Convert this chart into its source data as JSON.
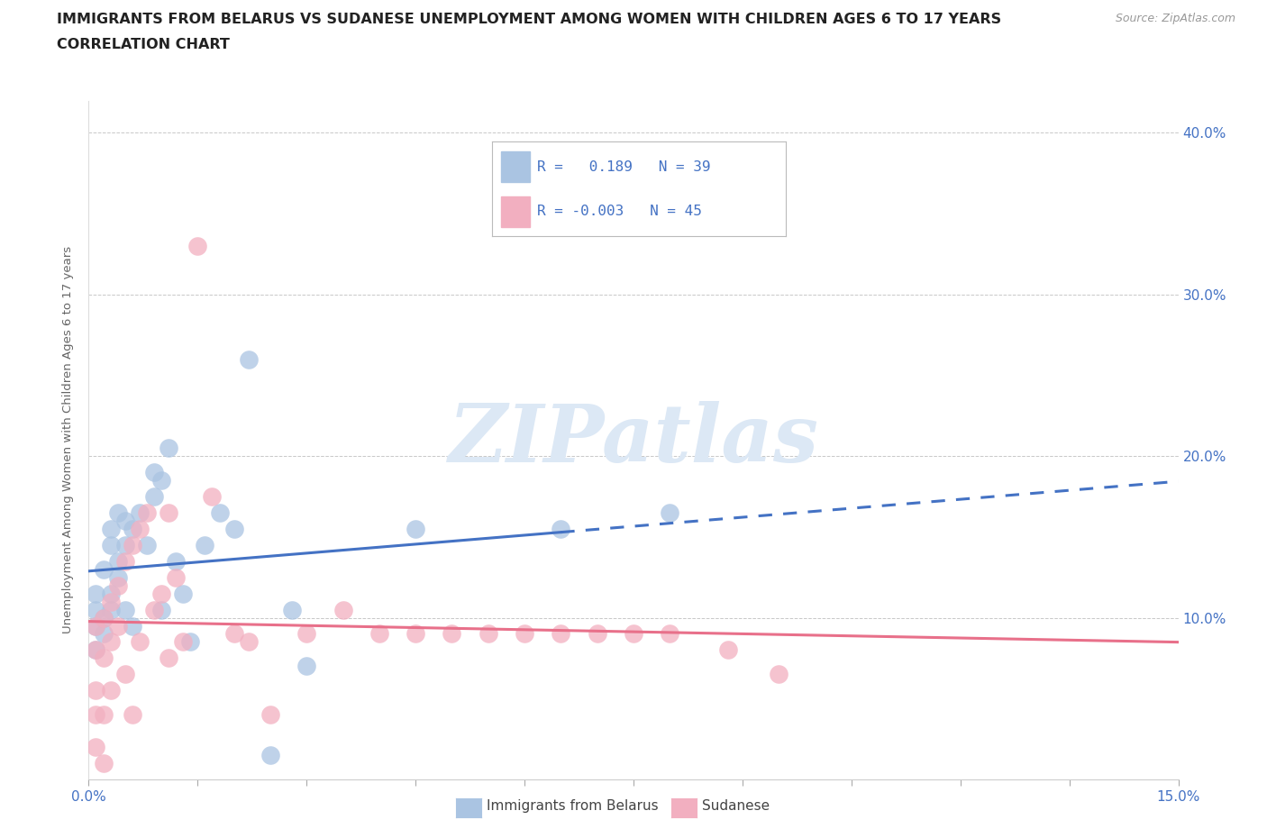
{
  "title_line1": "IMMIGRANTS FROM BELARUS VS SUDANESE UNEMPLOYMENT AMONG WOMEN WITH CHILDREN AGES 6 TO 17 YEARS",
  "title_line2": "CORRELATION CHART",
  "source_text": "Source: ZipAtlas.com",
  "ylabel": "Unemployment Among Women with Children Ages 6 to 17 years",
  "xlim": [
    0.0,
    0.15
  ],
  "ylim": [
    0.0,
    0.42
  ],
  "xtick_positions": [
    0.0,
    0.015,
    0.03,
    0.045,
    0.06,
    0.075,
    0.09,
    0.105,
    0.12,
    0.135,
    0.15
  ],
  "xticklabels": [
    "0.0%",
    "",
    "",
    "",
    "",
    "",
    "",
    "",
    "",
    "",
    "15.0%"
  ],
  "ytick_positions": [
    0.0,
    0.1,
    0.2,
    0.3,
    0.4
  ],
  "yticklabels_right": [
    "",
    "10.0%",
    "20.0%",
    "30.0%",
    "40.0%"
  ],
  "grid_color": "#c8c8c8",
  "background_color": "#ffffff",
  "belarus_dot_color": "#aac4e2",
  "sudanese_dot_color": "#f2afc0",
  "belarus_line_color": "#4472c4",
  "sudanese_line_color": "#e8708a",
  "legend_label_belarus": "Immigrants from Belarus",
  "legend_label_sudanese": "Sudanese",
  "watermark_text": "ZIPatlas",
  "watermark_color": "#dce8f5",
  "tick_color": "#4472c4",
  "title_color": "#222222",
  "ylabel_color": "#666666",
  "source_color": "#999999",
  "belarus_x": [
    0.001,
    0.001,
    0.001,
    0.001,
    0.002,
    0.002,
    0.002,
    0.003,
    0.003,
    0.003,
    0.003,
    0.004,
    0.004,
    0.004,
    0.005,
    0.005,
    0.005,
    0.006,
    0.006,
    0.007,
    0.008,
    0.009,
    0.009,
    0.01,
    0.01,
    0.011,
    0.012,
    0.013,
    0.014,
    0.016,
    0.018,
    0.02,
    0.022,
    0.025,
    0.028,
    0.03,
    0.045,
    0.065,
    0.08
  ],
  "belarus_y": [
    0.095,
    0.105,
    0.115,
    0.08,
    0.13,
    0.1,
    0.09,
    0.145,
    0.155,
    0.115,
    0.105,
    0.165,
    0.135,
    0.125,
    0.145,
    0.105,
    0.16,
    0.155,
    0.095,
    0.165,
    0.145,
    0.175,
    0.19,
    0.185,
    0.105,
    0.205,
    0.135,
    0.115,
    0.085,
    0.145,
    0.165,
    0.155,
    0.26,
    0.015,
    0.105,
    0.07,
    0.155,
    0.155,
    0.165
  ],
  "sudanese_x": [
    0.001,
    0.001,
    0.001,
    0.001,
    0.001,
    0.002,
    0.002,
    0.002,
    0.002,
    0.003,
    0.003,
    0.003,
    0.004,
    0.004,
    0.005,
    0.005,
    0.006,
    0.006,
    0.007,
    0.007,
    0.008,
    0.009,
    0.01,
    0.011,
    0.011,
    0.012,
    0.013,
    0.015,
    0.017,
    0.02,
    0.022,
    0.025,
    0.03,
    0.035,
    0.04,
    0.045,
    0.05,
    0.055,
    0.06,
    0.065,
    0.07,
    0.075,
    0.08,
    0.088,
    0.095
  ],
  "sudanese_y": [
    0.095,
    0.055,
    0.04,
    0.02,
    0.08,
    0.1,
    0.075,
    0.04,
    0.01,
    0.11,
    0.085,
    0.055,
    0.12,
    0.095,
    0.135,
    0.065,
    0.145,
    0.04,
    0.155,
    0.085,
    0.165,
    0.105,
    0.115,
    0.165,
    0.075,
    0.125,
    0.085,
    0.33,
    0.175,
    0.09,
    0.085,
    0.04,
    0.09,
    0.105,
    0.09,
    0.09,
    0.09,
    0.09,
    0.09,
    0.09,
    0.09,
    0.09,
    0.09,
    0.08,
    0.065
  ],
  "belarus_line_solid_end": 0.065,
  "belarus_line_dashed_start": 0.065,
  "belarus_line_dashed_end": 0.15,
  "sudanese_line_start": 0.0,
  "sudanese_line_end": 0.15
}
